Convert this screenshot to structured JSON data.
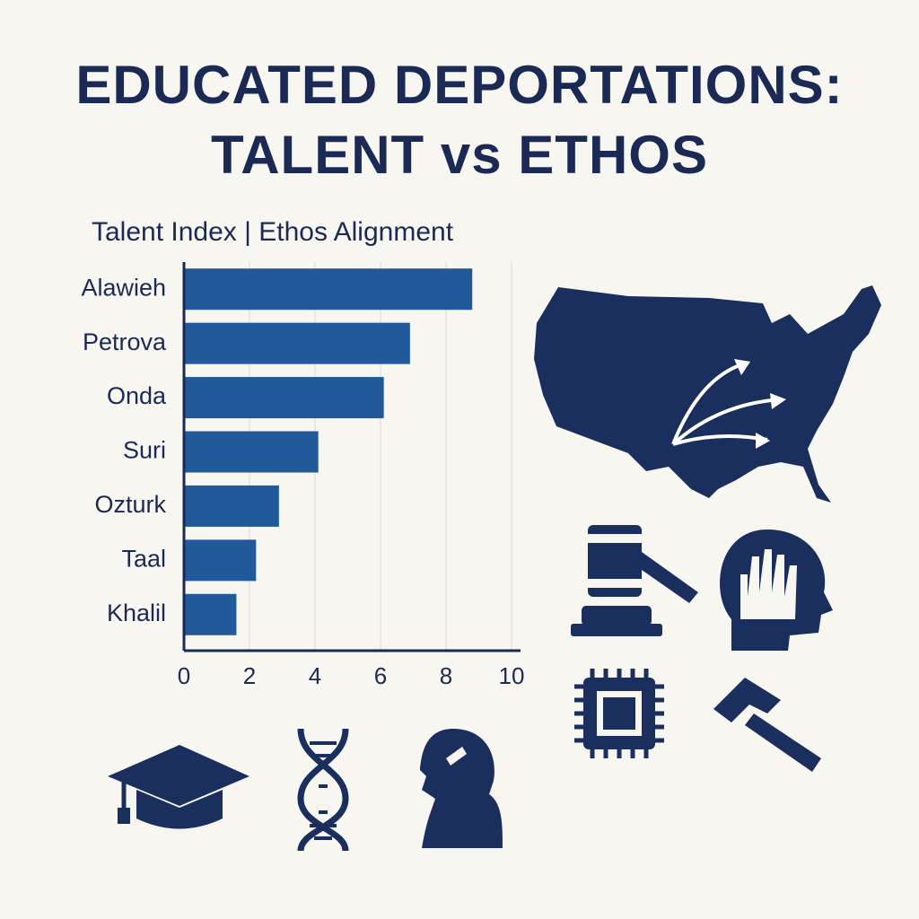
{
  "chart_data": {
    "type": "hbar",
    "title": "EDUCATED DEPORTATIONS: TALENT vs ETHOS",
    "subtitle": "Talent Index | Ethos Alignment",
    "categories": [
      "Alawieh",
      "Petrova",
      "Onda",
      "Suri",
      "Ozturk",
      "Taal",
      "Khalil"
    ],
    "values": [
      8.8,
      6.9,
      6.1,
      4.1,
      2.9,
      2.2,
      1.6
    ],
    "color": "#215a9a",
    "xlim": [
      0,
      10
    ],
    "xticks": [
      0,
      2,
      4,
      6,
      8,
      10
    ],
    "grid": true
  }
}
